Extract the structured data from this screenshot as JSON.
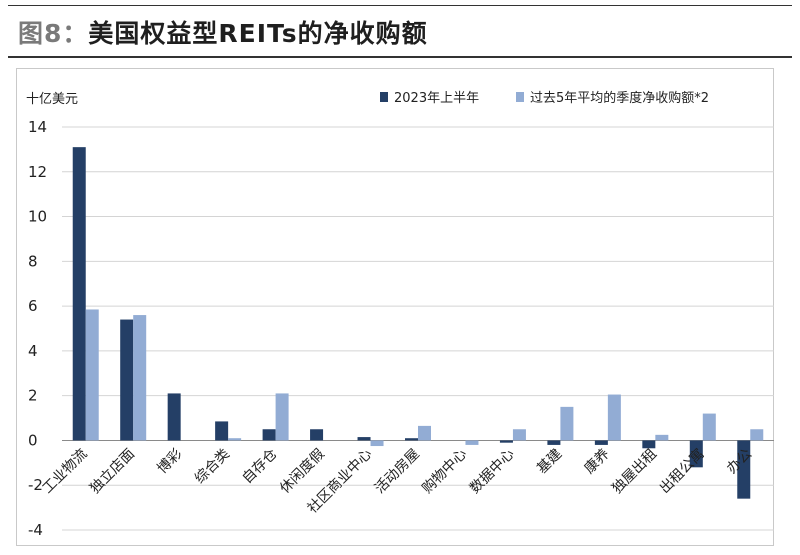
{
  "figure_label": "图8：",
  "figure_title": "美国权益型REITs的净收购额",
  "chart_data": {
    "type": "bar",
    "unit_label": "十亿美元",
    "ylim": [
      -4,
      14
    ],
    "yticks": [
      -4,
      -2,
      0,
      2,
      4,
      6,
      8,
      10,
      12,
      14
    ],
    "grid": true,
    "legend_position": "top-right",
    "categories": [
      "工业物流",
      "独立店面",
      "博彩",
      "综合类",
      "自存仓",
      "休闲度假",
      "社区商业中心",
      "活动房屋",
      "购物中心",
      "数据中心",
      "基建",
      "康养",
      "独屋出租",
      "出租公寓",
      "办公"
    ],
    "series": [
      {
        "name": "2023年上半年",
        "color": "#243f66",
        "values": [
          13.1,
          5.4,
          2.1,
          0.85,
          0.5,
          0.5,
          0.15,
          0.1,
          0.0,
          -0.1,
          -0.2,
          -0.2,
          -0.35,
          -1.2,
          -2.6
        ]
      },
      {
        "name": "过去5年平均的季度净收购额*2",
        "color": "#92acd4",
        "values": [
          5.85,
          5.6,
          0.0,
          0.1,
          2.1,
          0.0,
          -0.25,
          0.65,
          -0.2,
          0.5,
          1.5,
          2.05,
          0.25,
          1.2,
          0.5
        ]
      }
    ]
  }
}
